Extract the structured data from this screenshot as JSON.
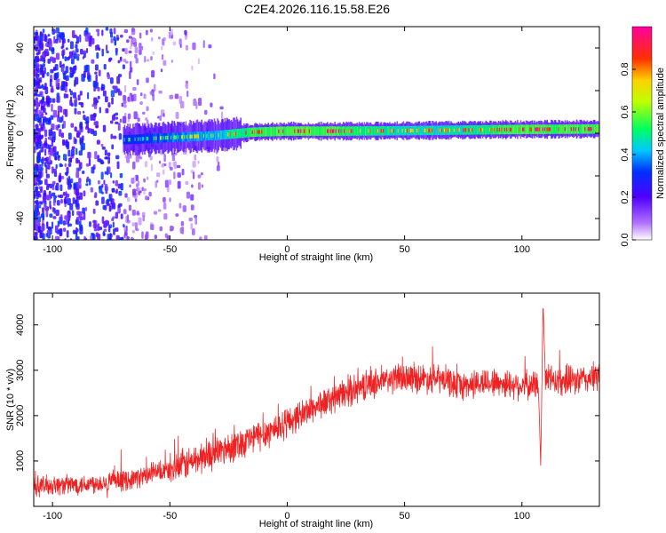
{
  "title": "C2E4.2026.116.15.58.E26",
  "chart_data": [
    {
      "type": "heatmap",
      "xlabel": "Height of straight line (km)",
      "ylabel": "Frequency (Hz)",
      "xlim": [
        -108,
        133
      ],
      "ylim": [
        -50,
        50
      ],
      "xticks": [
        -100,
        -50,
        0,
        50,
        100
      ],
      "yticks": [
        -40,
        -20,
        0,
        20,
        40
      ],
      "colorbar": {
        "label": "Normalized spectral amplitude",
        "range": [
          0.0,
          1.0
        ],
        "ticks": [
          0.0,
          0.2,
          0.4,
          0.6,
          0.8
        ],
        "tick_labels": [
          "0.0",
          "0.2",
          "0.4",
          "0.6",
          "0.8"
        ],
        "colormap": [
          "#ffffff",
          "#a000ff",
          "#0000ff",
          "#00d0ff",
          "#00ff60",
          "#ffff00",
          "#ff8000",
          "#ff0000",
          "#ff00a0"
        ]
      },
      "ridge": {
        "description_points_x": [
          -68,
          -50,
          -30,
          -15,
          0,
          25,
          50,
          75,
          100,
          133
        ],
        "center_freq_hz": [
          -3,
          -2,
          -1,
          0.5,
          1,
          1,
          1.2,
          1.5,
          1.8,
          2
        ],
        "peak_amplitude": [
          0.45,
          0.6,
          0.7,
          0.9,
          0.95,
          0.9,
          0.75,
          0.8,
          0.95,
          0.9
        ]
      }
    },
    {
      "type": "line",
      "xlabel": "Height of straight line (km)",
      "ylabel": "SNR (10 * v/v)",
      "xlim": [
        -108,
        133
      ],
      "ylim": [
        0,
        4700
      ],
      "xticks": [
        -100,
        -50,
        0,
        50,
        100
      ],
      "yticks": [
        1000,
        2000,
        3000,
        4000
      ],
      "color": "#ee2222",
      "trend": {
        "x": [
          -108,
          -90,
          -70,
          -50,
          -35,
          -25,
          -10,
          0,
          10,
          25,
          35,
          50,
          65,
          75,
          85,
          95,
          104,
          107,
          108,
          109,
          110,
          120,
          133
        ],
        "y": [
          450,
          480,
          560,
          800,
          1100,
          1300,
          1600,
          1850,
          2150,
          2500,
          2700,
          2850,
          2800,
          2650,
          2750,
          2700,
          2650,
          2700,
          900,
          4500,
          2800,
          2750,
          2850
        ]
      }
    }
  ]
}
